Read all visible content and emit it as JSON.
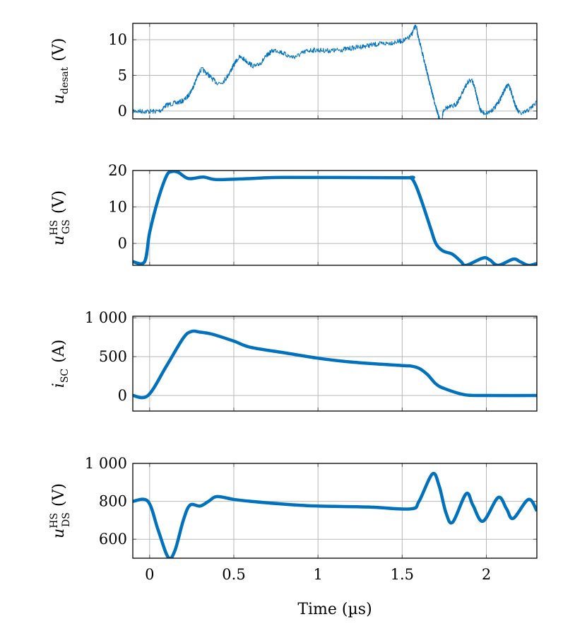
{
  "chart_data": [
    {
      "type": "line",
      "ylabel": {
        "main": "u",
        "sub": "desat",
        "sup": "",
        "unit": "(V)"
      },
      "xlim": [
        -0.1,
        2.3
      ],
      "ylim": [
        -1.1,
        12.3
      ],
      "yticks": [
        0,
        5,
        10
      ],
      "ytick_labels": [
        "0",
        "5",
        "10"
      ],
      "grid": true,
      "noisy": true,
      "x": [
        -0.1,
        0.05,
        0.1,
        0.2,
        0.25,
        0.3,
        0.33,
        0.4,
        0.45,
        0.52,
        0.55,
        0.62,
        0.66,
        0.74,
        0.85,
        0.95,
        1.1,
        1.3,
        1.52,
        1.58,
        1.6,
        1.72,
        1.75,
        1.82,
        1.91,
        1.97,
        2.05,
        2.12,
        2.14,
        2.2,
        2.3
      ],
      "y": [
        0,
        0,
        0.8,
        1.5,
        3,
        5.6,
        5.5,
        4,
        4.5,
        7.2,
        7.4,
        6.3,
        6.8,
        8.5,
        7.6,
        8.5,
        8.5,
        9.2,
        10,
        11.8,
        10,
        -1,
        0.3,
        1,
        4.3,
        0,
        0.5,
        3.4,
        3.2,
        -0.3,
        1.2
      ]
    },
    {
      "type": "line",
      "ylabel": {
        "main": "u",
        "sub": "GS",
        "sup": "HS",
        "unit": "(V)"
      },
      "xlim": [
        -0.1,
        2.3
      ],
      "ylim": [
        -6,
        20
      ],
      "yticks": [
        0,
        10,
        20
      ],
      "ytick_labels": [
        "0",
        "10",
        "20"
      ],
      "grid": true,
      "x": [
        -0.1,
        -0.03,
        0,
        0.05,
        0.1,
        0.13,
        0.17,
        0.23,
        0.32,
        0.4,
        0.6,
        0.8,
        1.5,
        1.55,
        1.58,
        1.62,
        1.67,
        1.7,
        1.74,
        1.8,
        1.85,
        1.88,
        1.98,
        2.02,
        2.07,
        2.16,
        2.2,
        2.25,
        2.3
      ],
      "y": [
        -5,
        -5,
        3,
        12,
        18.5,
        19.7,
        19.5,
        17.8,
        18.2,
        17.5,
        17.8,
        18.1,
        18,
        18,
        16,
        11,
        4,
        0,
        -2,
        -3,
        -5,
        -6,
        -4,
        -4.5,
        -6,
        -4.3,
        -5,
        -6,
        -5.5
      ]
    },
    {
      "type": "line",
      "ylabel": {
        "main": "i",
        "sub": "SC",
        "sup": "",
        "unit": "(A)"
      },
      "xlim": [
        -0.1,
        2.3
      ],
      "ylim": [
        -200,
        1020
      ],
      "yticks": [
        0,
        500,
        1000
      ],
      "ytick_labels": [
        "0",
        "500",
        "1 000"
      ],
      "grid": true,
      "x": [
        -0.1,
        -0.01,
        0.1,
        0.2,
        0.25,
        0.3,
        0.37,
        0.5,
        0.6,
        0.8,
        1,
        1.2,
        1.5,
        1.55,
        1.6,
        1.65,
        1.7,
        1.75,
        1.87,
        2,
        2.3
      ],
      "y": [
        0,
        0,
        380,
        740,
        825,
        815,
        790,
        700,
        620,
        550,
        480,
        430,
        385,
        380,
        350,
        270,
        150,
        90,
        10,
        0,
        0
      ]
    },
    {
      "type": "line",
      "ylabel": {
        "main": "u",
        "sub": "DS",
        "sup": "HS",
        "unit": "(V)"
      },
      "xlabel": "Time (µs)",
      "xlim": [
        -0.1,
        2.3
      ],
      "ylim": [
        500,
        1000
      ],
      "xticks": [
        0,
        0.5,
        1,
        1.5,
        2
      ],
      "xtick_labels": [
        "0",
        "0.5",
        "1",
        "1.5",
        "2"
      ],
      "yticks": [
        600,
        800,
        1000
      ],
      "ytick_labels": [
        "600",
        "800",
        "1 000"
      ],
      "grid": true,
      "x": [
        -0.1,
        -0.01,
        0.05,
        0.11,
        0.15,
        0.2,
        0.24,
        0.3,
        0.35,
        0.4,
        0.5,
        0.6,
        0.8,
        1,
        1.3,
        1.55,
        1.6,
        1.68,
        1.72,
        1.76,
        1.8,
        1.88,
        1.92,
        1.98,
        2.07,
        2.12,
        2.16,
        2.25,
        2.3
      ],
      "y": [
        800,
        800,
        650,
        505,
        540,
        700,
        780,
        775,
        800,
        825,
        810,
        800,
        785,
        775,
        770,
        760,
        800,
        945,
        880,
        740,
        690,
        840,
        780,
        695,
        820,
        760,
        710,
        810,
        750
      ]
    }
  ],
  "colors": {
    "series": "#0072BD",
    "grid": "#b8b8b8"
  }
}
